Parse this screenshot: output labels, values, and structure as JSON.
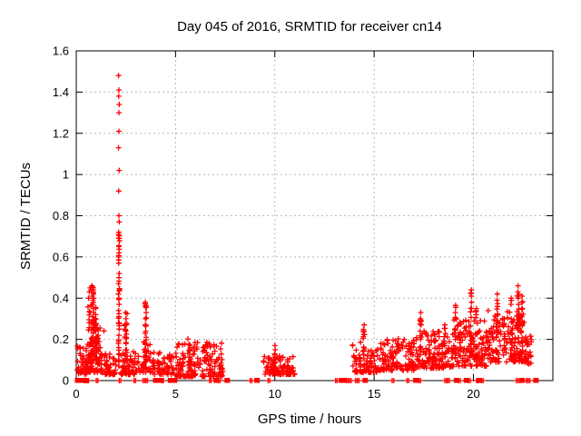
{
  "chart_data": {
    "type": "scatter",
    "title": "Day 045 of 2016, SRMTID for receiver cn14",
    "xlabel": "GPS time / hours",
    "ylabel": "SRMTID / TECUs",
    "xlim": [
      0,
      24
    ],
    "ylim": [
      0,
      1.6
    ],
    "xticks": [
      0,
      5,
      10,
      15,
      20
    ],
    "xtick_labels": [
      "0",
      "5",
      "10",
      "15",
      "20"
    ],
    "yticks": [
      0,
      0.2,
      0.4,
      0.6,
      0.8,
      1,
      1.2,
      1.4,
      1.6
    ],
    "ytick_labels": [
      "0",
      "0.2",
      "0.4",
      "0.6",
      "0.8",
      "1",
      "1.2",
      "1.4",
      "1.6"
    ],
    "grid": true,
    "legend": "none",
    "marker": "plus",
    "marker_color": "#ff0000",
    "grid_color": "#b8b8b8",
    "border_color": "#000000",
    "background": "#ffffff",
    "seed": 1045,
    "max_point": [
      2.13,
      1.48
    ],
    "points_explicit": [
      [
        2.13,
        1.48
      ],
      [
        2.15,
        1.41
      ],
      [
        2.14,
        1.38
      ],
      [
        2.16,
        1.34
      ],
      [
        2.15,
        1.3
      ],
      [
        2.15,
        1.21
      ],
      [
        2.13,
        1.13
      ],
      [
        2.16,
        1.02
      ],
      [
        2.14,
        0.92
      ],
      [
        2.15,
        0.8
      ],
      [
        2.16,
        0.77
      ],
      [
        2.14,
        0.72
      ],
      [
        2.15,
        0.65
      ],
      [
        2.13,
        0.6
      ],
      [
        2.14,
        0.57
      ],
      [
        2.16,
        0.52
      ],
      [
        2.15,
        0.5
      ],
      [
        2.13,
        0.47
      ],
      [
        2.17,
        0.44
      ],
      [
        2.12,
        0.42
      ],
      [
        2.15,
        0.4
      ],
      [
        2.16,
        0.37
      ],
      [
        2.13,
        0.34
      ],
      [
        2.15,
        0.31
      ],
      [
        2.14,
        0.28
      ],
      [
        2.16,
        0.25
      ],
      [
        2.15,
        0.22
      ],
      [
        2.13,
        0.19
      ],
      [
        2.14,
        0.16
      ],
      [
        2.16,
        0.13
      ],
      [
        2.15,
        0.1
      ],
      [
        2.14,
        0.07
      ],
      [
        0.62,
        0.4
      ],
      [
        0.66,
        0.43
      ],
      [
        0.7,
        0.45
      ],
      [
        0.74,
        0.44
      ],
      [
        0.78,
        0.46
      ],
      [
        0.8,
        0.41
      ],
      [
        0.82,
        0.455
      ],
      [
        0.83,
        0.44
      ],
      [
        0.84,
        0.43
      ],
      [
        0.85,
        0.45
      ],
      [
        0.86,
        0.44
      ],
      [
        0.87,
        0.42
      ],
      [
        0.88,
        0.4
      ],
      [
        0.84,
        0.39
      ],
      [
        0.86,
        0.38
      ],
      [
        0.82,
        0.37
      ],
      [
        0.85,
        0.35
      ],
      [
        0.87,
        0.33
      ],
      [
        0.83,
        0.31
      ],
      [
        0.85,
        0.29
      ],
      [
        0.84,
        0.27
      ],
      [
        0.86,
        0.25
      ],
      [
        0.85,
        0.23
      ],
      [
        0.83,
        0.21
      ],
      [
        0.86,
        0.19
      ],
      [
        0.84,
        0.17
      ],
      [
        0.85,
        0.15
      ],
      [
        0.97,
        0.35
      ],
      [
        0.98,
        0.32
      ],
      [
        0.99,
        0.3
      ],
      [
        0.97,
        0.27
      ],
      [
        0.98,
        0.24
      ],
      [
        1.0,
        0.21
      ],
      [
        1.02,
        0.18
      ],
      [
        1.05,
        0.25
      ],
      [
        1.1,
        0.22
      ],
      [
        1.15,
        0.19
      ],
      [
        1.2,
        0.16
      ],
      [
        1.25,
        0.13
      ],
      [
        3.48,
        0.38
      ],
      [
        3.5,
        0.355
      ],
      [
        3.52,
        0.33
      ],
      [
        3.49,
        0.3
      ],
      [
        3.51,
        0.27
      ],
      [
        3.5,
        0.24
      ],
      [
        3.52,
        0.21
      ],
      [
        3.48,
        0.18
      ],
      [
        3.5,
        0.15
      ],
      [
        3.51,
        0.12
      ],
      [
        2.48,
        0.33
      ],
      [
        2.5,
        0.3
      ],
      [
        2.52,
        0.27
      ],
      [
        2.49,
        0.24
      ],
      [
        2.51,
        0.21
      ],
      [
        2.5,
        0.18
      ],
      [
        2.53,
        0.15
      ],
      [
        2.47,
        0.12
      ],
      [
        10.0,
        0.17
      ],
      [
        10.02,
        0.15
      ],
      [
        9.99,
        0.13
      ],
      [
        14.5,
        0.27
      ],
      [
        14.49,
        0.24
      ],
      [
        17.35,
        0.33
      ],
      [
        17.34,
        0.3
      ],
      [
        17.36,
        0.27
      ],
      [
        19.1,
        0.365
      ],
      [
        19.09,
        0.33
      ],
      [
        19.11,
        0.3
      ],
      [
        19.9,
        0.44
      ],
      [
        19.89,
        0.41
      ],
      [
        19.91,
        0.38
      ],
      [
        19.9,
        0.35
      ],
      [
        20.15,
        0.35
      ],
      [
        20.14,
        0.32
      ],
      [
        21.2,
        0.42
      ],
      [
        21.19,
        0.39
      ],
      [
        21.21,
        0.36
      ],
      [
        21.55,
        0.3
      ],
      [
        21.54,
        0.27
      ],
      [
        21.9,
        0.4
      ],
      [
        21.89,
        0.37
      ],
      [
        22.25,
        0.46
      ],
      [
        22.24,
        0.43
      ],
      [
        22.26,
        0.4
      ],
      [
        22.27,
        0.37
      ],
      [
        22.45,
        0.41
      ],
      [
        22.44,
        0.38
      ]
    ],
    "bands": [
      {
        "x0": 0.05,
        "x1": 0.6,
        "n": 45,
        "ymin": 0.03,
        "ymax": 0.17,
        "p": 1.5
      },
      {
        "x0": 0.6,
        "x1": 1.4,
        "n": 70,
        "ymin": 0.04,
        "ymax": 0.3,
        "p": 2.2
      },
      {
        "x0": 1.4,
        "x1": 2.0,
        "n": 45,
        "ymin": 0.03,
        "ymax": 0.13,
        "p": 1.8
      },
      {
        "x0": 2.2,
        "x1": 3.35,
        "n": 70,
        "ymin": 0.03,
        "ymax": 0.14,
        "p": 1.8
      },
      {
        "x0": 3.35,
        "x1": 3.75,
        "n": 30,
        "ymin": 0.04,
        "ymax": 0.2,
        "p": 2.0
      },
      {
        "x0": 3.75,
        "x1": 5.05,
        "n": 70,
        "ymin": 0.03,
        "ymax": 0.14,
        "p": 1.8
      },
      {
        "x0": 5.05,
        "x1": 7.38,
        "n": 175,
        "ymin": 0.02,
        "ymax": 0.19,
        "p": 2.0
      },
      {
        "x0": 9.4,
        "x1": 11.0,
        "n": 105,
        "ymin": 0.03,
        "ymax": 0.12,
        "p": 1.7
      },
      {
        "x0": 13.9,
        "x1": 15.15,
        "n": 80,
        "ymin": 0.04,
        "ymax": 0.19,
        "p": 1.9
      },
      {
        "x0": 15.15,
        "x1": 17.1,
        "n": 130,
        "ymin": 0.05,
        "ymax": 0.2,
        "p": 1.9
      },
      {
        "x0": 17.1,
        "x1": 19.0,
        "n": 140,
        "ymin": 0.06,
        "ymax": 0.24,
        "p": 1.9
      },
      {
        "x0": 19.0,
        "x1": 20.7,
        "n": 130,
        "ymin": 0.07,
        "ymax": 0.3,
        "p": 1.9
      },
      {
        "x0": 20.7,
        "x1": 22.55,
        "n": 150,
        "ymin": 0.09,
        "ymax": 0.34,
        "p": 1.8
      },
      {
        "x0": 22.55,
        "x1": 22.95,
        "n": 35,
        "ymin": 0.08,
        "ymax": 0.22,
        "p": 1.5
      }
    ],
    "spikes": [
      {
        "x": 0.72,
        "n": 22,
        "w": 0.3,
        "ymin": 0.08,
        "ymax": 0.44,
        "p": 1.2
      },
      {
        "x": 0.98,
        "n": 12,
        "w": 0.1,
        "ymin": 0.1,
        "ymax": 0.36,
        "p": 1.2
      },
      {
        "x": 1.15,
        "n": 10,
        "w": 0.12,
        "ymin": 0.08,
        "ymax": 0.25,
        "p": 1.0
      },
      {
        "x": 2.15,
        "n": 26,
        "w": 0.07,
        "ymin": 0.05,
        "ymax": 0.72,
        "p": 1.0
      },
      {
        "x": 2.5,
        "n": 14,
        "w": 0.14,
        "ymin": 0.05,
        "ymax": 0.33,
        "p": 1.2
      },
      {
        "x": 3.5,
        "n": 16,
        "w": 0.1,
        "ymin": 0.05,
        "ymax": 0.38,
        "p": 1.2
      },
      {
        "x": 5.7,
        "n": 8,
        "w": 0.16,
        "ymin": 0.08,
        "ymax": 0.21,
        "p": 1.0
      },
      {
        "x": 6.5,
        "n": 8,
        "w": 0.16,
        "ymin": 0.08,
        "ymax": 0.21,
        "p": 1.0
      },
      {
        "x": 10.0,
        "n": 8,
        "w": 0.1,
        "ymin": 0.05,
        "ymax": 0.16,
        "p": 1.0
      },
      {
        "x": 14.5,
        "n": 10,
        "w": 0.12,
        "ymin": 0.08,
        "ymax": 0.26,
        "p": 1.0
      },
      {
        "x": 16.2,
        "n": 8,
        "w": 0.12,
        "ymin": 0.08,
        "ymax": 0.22,
        "p": 1.0
      },
      {
        "x": 17.35,
        "n": 12,
        "w": 0.08,
        "ymin": 0.1,
        "ymax": 0.32,
        "p": 1.0
      },
      {
        "x": 18.05,
        "n": 8,
        "w": 0.1,
        "ymin": 0.1,
        "ymax": 0.26,
        "p": 1.0
      },
      {
        "x": 18.55,
        "n": 8,
        "w": 0.1,
        "ymin": 0.1,
        "ymax": 0.27,
        "p": 1.0
      },
      {
        "x": 19.1,
        "n": 12,
        "w": 0.08,
        "ymin": 0.1,
        "ymax": 0.36,
        "p": 1.0
      },
      {
        "x": 19.35,
        "n": 10,
        "w": 0.08,
        "ymin": 0.1,
        "ymax": 0.3,
        "p": 1.0
      },
      {
        "x": 19.9,
        "n": 14,
        "w": 0.1,
        "ymin": 0.12,
        "ymax": 0.43,
        "p": 1.0
      },
      {
        "x": 20.15,
        "n": 10,
        "w": 0.08,
        "ymin": 0.1,
        "ymax": 0.34,
        "p": 1.0
      },
      {
        "x": 21.2,
        "n": 14,
        "w": 0.1,
        "ymin": 0.12,
        "ymax": 0.41,
        "p": 1.0
      },
      {
        "x": 21.55,
        "n": 8,
        "w": 0.08,
        "ymin": 0.12,
        "ymax": 0.3,
        "p": 1.0
      },
      {
        "x": 21.9,
        "n": 12,
        "w": 0.1,
        "ymin": 0.12,
        "ymax": 0.39,
        "p": 1.0
      },
      {
        "x": 22.25,
        "n": 16,
        "w": 0.14,
        "ymin": 0.12,
        "ymax": 0.45,
        "p": 1.0
      },
      {
        "x": 22.45,
        "n": 12,
        "w": 0.1,
        "ymin": 0.1,
        "ymax": 0.4,
        "p": 1.0
      }
    ],
    "zeros": [
      [
        0.07,
        1
      ],
      [
        0.14,
        1
      ],
      [
        0.25,
        1
      ],
      [
        0.33,
        1
      ],
      [
        0.45,
        0
      ],
      [
        0.52,
        0
      ],
      [
        0.58,
        0
      ],
      [
        1.05,
        0
      ],
      [
        2.2,
        0
      ],
      [
        2.95,
        0
      ],
      [
        3.4,
        0
      ],
      [
        3.55,
        0
      ],
      [
        4.0,
        1
      ],
      [
        4.12,
        1
      ],
      [
        4.25,
        1
      ],
      [
        4.35,
        0
      ],
      [
        4.75,
        1
      ],
      [
        4.95,
        1
      ],
      [
        6.75,
        0
      ],
      [
        7.05,
        1
      ],
      [
        7.2,
        0
      ],
      [
        7.6,
        1
      ],
      [
        8.8,
        0
      ],
      [
        9.1,
        1
      ],
      [
        9.7,
        0
      ],
      [
        13.1,
        0
      ],
      [
        13.35,
        1
      ],
      [
        13.5,
        1
      ],
      [
        13.65,
        0
      ],
      [
        13.8,
        0
      ],
      [
        14.1,
        0
      ],
      [
        14.2,
        0
      ],
      [
        14.55,
        1
      ],
      [
        15.95,
        0
      ],
      [
        16.7,
        0
      ],
      [
        17.1,
        1
      ],
      [
        17.3,
        0
      ],
      [
        18.6,
        0
      ],
      [
        18.75,
        0
      ],
      [
        19.15,
        1
      ],
      [
        19.3,
        0
      ],
      [
        19.65,
        1
      ],
      [
        19.8,
        0
      ],
      [
        20.2,
        0
      ],
      [
        20.3,
        1
      ],
      [
        20.45,
        0
      ],
      [
        22.2,
        0
      ],
      [
        22.3,
        0
      ],
      [
        22.45,
        1
      ],
      [
        22.7,
        0
      ],
      [
        22.8,
        0
      ],
      [
        23.15,
        1
      ]
    ]
  }
}
